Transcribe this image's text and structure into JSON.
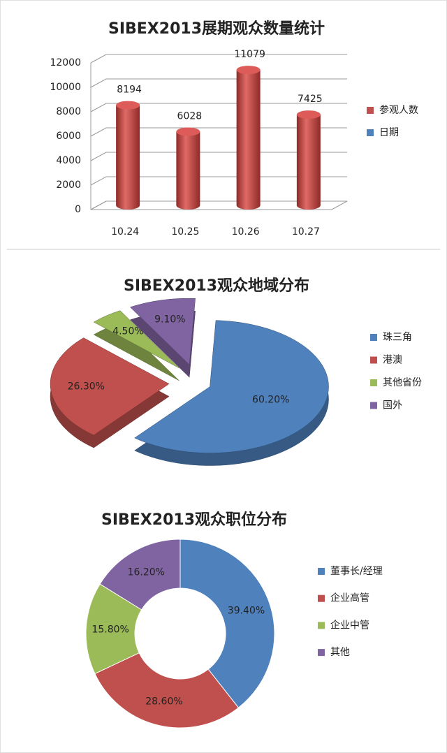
{
  "chart_data": [
    {
      "type": "bar",
      "title": "SIBEX2013展期观众数量统计",
      "categories": [
        "10.24",
        "10.25",
        "10.26",
        "10.27"
      ],
      "series": [
        {
          "name": "参观人数",
          "color": "#c0504d",
          "values": [
            8194,
            6028,
            11079,
            7425
          ]
        },
        {
          "name": "日期",
          "color": "#4f81bd",
          "values": [
            null,
            null,
            null,
            null
          ]
        }
      ],
      "ylim": [
        0,
        12000
      ],
      "yticks": [
        0,
        2000,
        4000,
        6000,
        8000,
        10000,
        12000
      ],
      "grid": true
    },
    {
      "type": "pie",
      "title": "SIBEX2013观众地域分布",
      "categories": [
        "珠三角",
        "港澳",
        "其他省份",
        "国外"
      ],
      "values": [
        60.2,
        26.3,
        4.5,
        9.1
      ],
      "value_labels": [
        "60.20%",
        "26.30%",
        "4.50%",
        "9.10%"
      ],
      "colors": [
        "#4f81bd",
        "#c0504d",
        "#9bbb59",
        "#8064a2"
      ]
    },
    {
      "type": "donut",
      "title": "SIBEX2013观众职位分布",
      "categories": [
        "董事长/经理",
        "企业高管",
        "企业中管",
        "其他"
      ],
      "values": [
        39.4,
        28.6,
        15.8,
        16.2
      ],
      "value_labels": [
        "39.40%",
        "28.60%",
        "15.80%",
        "16.20%"
      ],
      "colors": [
        "#4f81bd",
        "#c0504d",
        "#9bbb59",
        "#8064a2"
      ]
    }
  ]
}
